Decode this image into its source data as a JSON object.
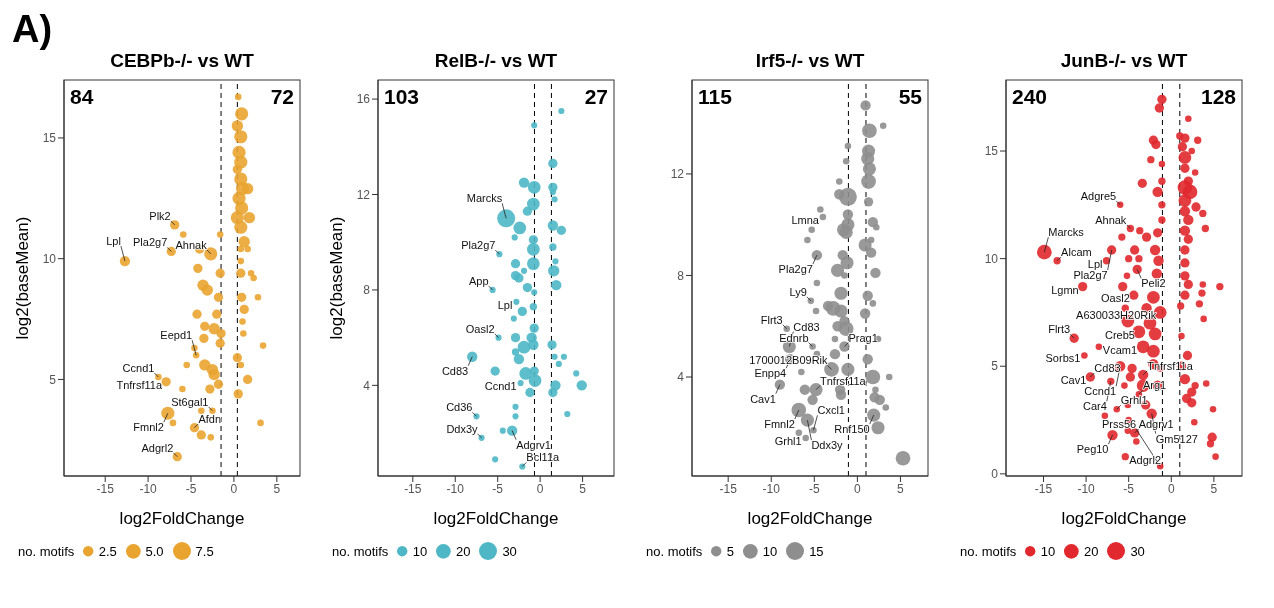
{
  "chart_data": [
    {
      "type": "bubble",
      "title": "CEBPb-/- vs WT",
      "xlabel": "log2FoldChange",
      "ylabel": "log2(baseMean)",
      "legend_title": "no. motifs",
      "size_legend": [
        2.5,
        {
          "value": 5,
          "label": "5.0"
        },
        7.5
      ],
      "xlim": [
        -19.8,
        7.7
      ],
      "xticks": [
        -15,
        -10,
        -5,
        0,
        5
      ],
      "ylim": [
        1,
        17.4
      ],
      "yticks": [
        5,
        10,
        15
      ],
      "ref_lines": [
        {
          "axis": "x",
          "value": -1.5,
          "line_style": "dashed",
          "color": "#000000"
        },
        {
          "axis": "x",
          "value": 0.4,
          "line_style": "dashed",
          "color": "#000000"
        }
      ],
      "series": [
        {
          "color": "#e9a430",
          "x": [
            0.5,
            0.9,
            0.4,
            0.8,
            0.6,
            0.8,
            0.4,
            0.8,
            1.0,
            1.6,
            0.6,
            0.9,
            0.4,
            1.8,
            0.8,
            1.2,
            0.8,
            1.6,
            0.8,
            0.8,
            2.0,
            2.3,
            2.8,
            0.9,
            1.2,
            1.0,
            1.1,
            3.4,
            0.4,
            0.8,
            1.6,
            0.5,
            3.1,
            -6.9,
            -5.9,
            -7.3,
            -12.7,
            -2.7,
            -4.0,
            -1.6,
            -4.2,
            -1.6,
            -3.6,
            -3.1,
            -1.8,
            -4.3,
            -2.0,
            -3.4,
            -2.3,
            -1.5,
            -3.5,
            -1.6,
            -4.6,
            -4.4,
            -3.4,
            -2.5,
            -2.3,
            -5.5,
            -8.8,
            -7.9,
            -6.0,
            -1.8,
            -2.8,
            -2.5,
            -3.8,
            -7.7,
            -7.1,
            -4.6,
            -3.8,
            -2.7,
            -6.6
          ],
          "values": [
            16.7,
            16.0,
            15.5,
            15.05,
            14.4,
            14.0,
            13.7,
            13.3,
            12.9,
            12.9,
            12.5,
            12.1,
            11.7,
            11.7,
            11.3,
            10.7,
            10.4,
            10.4,
            9.9,
            9.4,
            9.4,
            9.2,
            8.4,
            8.4,
            7.9,
            7.4,
            6.9,
            6.4,
            5.9,
            5.6,
            5.0,
            4.4,
            3.2,
            11.4,
            11.0,
            10.3,
            9.9,
            10.2,
            10.4,
            11.0,
            9.6,
            9.4,
            8.9,
            8.7,
            8.4,
            7.7,
            7.7,
            7.2,
            7.1,
            6.9,
            6.7,
            6.5,
            6.3,
            6.0,
            5.6,
            5.4,
            5.2,
            5.6,
            5.1,
            4.9,
            4.6,
            4.8,
            4.6,
            3.7,
            3.7,
            3.6,
            3.2,
            3.0,
            2.7,
            2.6,
            1.8
          ],
          "sizes": [
            1,
            4,
            3,
            4,
            4,
            4,
            2,
            4,
            4,
            3,
            4,
            4,
            4,
            3,
            4,
            3,
            1,
            1,
            1,
            2,
            1,
            1,
            1,
            2,
            2,
            1,
            1,
            1,
            2,
            1,
            2,
            2,
            1,
            2,
            1,
            2,
            2.5,
            4,
            2,
            1,
            2,
            2,
            3,
            3,
            2,
            2,
            2,
            2,
            3,
            2,
            2,
            2,
            1,
            1,
            3,
            3,
            3,
            1,
            1,
            2,
            1,
            2,
            2,
            1,
            1,
            4,
            1,
            2,
            2,
            1,
            2
          ]
        }
      ],
      "annotations": [
        "A)",
        "84",
        "72",
        {
          "text": "Plk2",
          "x": -6.9,
          "y": 11.4
        },
        {
          "text": "Ahnak",
          "x": -2.7,
          "y": 10.2
        },
        {
          "text": "Pla2g7",
          "x": -7.3,
          "y": 10.3
        },
        {
          "text": "Lpl",
          "x": -12.7,
          "y": 9.9
        },
        {
          "text": "Eepd1",
          "x": -4.4,
          "y": 6.0
        },
        {
          "text": "Ccnd1",
          "x": -8.8,
          "y": 5.1
        },
        {
          "text": "Tnfrsf11a",
          "x": -7.9,
          "y": 4.9
        },
        {
          "text": "St6gal1",
          "x": -2.5,
          "y": 3.7
        },
        {
          "text": "Fmnl2",
          "x": -7.7,
          "y": 3.6
        },
        {
          "text": "Afdn",
          "x": -4.6,
          "y": 3.0
        },
        {
          "text": "Adgrl2",
          "x": -6.6,
          "y": 1.8
        }
      ]
    },
    {
      "type": "bubble",
      "title": "RelB-/- vs WT",
      "xlabel": "log2FoldChange",
      "ylabel": "log2(baseMean)",
      "legend_title": "no. motifs",
      "size_legend": [
        10,
        20,
        30
      ],
      "xlim": [
        -19.1,
        8.7
      ],
      "xticks": [
        -15,
        -10,
        -5,
        0,
        5
      ],
      "ylim": [
        0.2,
        16.8
      ],
      "yticks": [
        4,
        8,
        12,
        16
      ],
      "ref_lines": [
        {
          "axis": "x",
          "value": -0.67,
          "line_style": "dashed",
          "color": "#000000"
        },
        {
          "axis": "x",
          "value": 1.33,
          "line_style": "dashed",
          "color": "#000000"
        }
      ],
      "series": [
        {
          "color": "#4eb7c5",
          "x": [
            2.5,
            -0.7,
            1.5,
            -1.9,
            -0.7,
            1.5,
            1.5,
            -0.8,
            -1.5,
            1.7,
            -4.0,
            -2.4,
            1.5,
            2.5,
            -3.0,
            -0.8,
            -0.8,
            1.5,
            -4.8,
            -2.9,
            -0.8,
            1.8,
            1.6,
            -2.9,
            -2.5,
            -5.6,
            -1.5,
            1.9,
            -1.9,
            -0.7,
            -2.8,
            -2.1,
            -0.8,
            -3.1,
            -0.7,
            -4.9,
            -2.9,
            -1.0,
            1.4,
            -1.9,
            -0.8,
            -8.0,
            -2.5,
            -2.9,
            1.7,
            2.8,
            2.2,
            -5.3,
            -1.7,
            -0.7,
            -0.6,
            -2.3,
            4.25,
            1.8,
            4.9,
            -1.2,
            1.5,
            -7.5,
            -2.9,
            -2.9,
            3.2,
            -3.3,
            -4.4,
            -6.9,
            -5.3,
            -2.1
          ],
          "values": [
            15.5,
            14.9,
            13.3,
            12.5,
            12.3,
            12.3,
            12.1,
            11.6,
            11.3,
            11.8,
            11.0,
            10.6,
            10.7,
            10.5,
            10.2,
            10.1,
            9.7,
            9.8,
            9.5,
            9.1,
            9.1,
            9.2,
            8.8,
            8.6,
            8.5,
            8.0,
            8.1,
            8.2,
            8.8,
            7.9,
            7.5,
            7.1,
            7.3,
            6.8,
            6.4,
            6.0,
            6.0,
            6.0,
            5.7,
            5.6,
            5.7,
            5.2,
            5.1,
            5.4,
            5.2,
            5.2,
            4.9,
            4.6,
            4.5,
            4.6,
            4.2,
            4.1,
            4.5,
            4.0,
            4.0,
            3.7,
            3.7,
            2.7,
            3.1,
            2.7,
            2.8,
            2.1,
            2.1,
            1.8,
            0.9,
            0.6
          ],
          "sizes": [
            3.5,
            3.5,
            8,
            10,
            15,
            8,
            3.5,
            15,
            8,
            3.5,
            30,
            15,
            10,
            8,
            3.5,
            8,
            15,
            5,
            3.5,
            8,
            15,
            3.5,
            12,
            8,
            8,
            3.5,
            8,
            10,
            3.5,
            3.5,
            3.5,
            8,
            5,
            3.5,
            8,
            3.5,
            8,
            10,
            8,
            15,
            10,
            10,
            10,
            5,
            3.5,
            3.5,
            3.5,
            8,
            15,
            8,
            15,
            3.5,
            3.5,
            10,
            10,
            8,
            8,
            3.5,
            3.5,
            3.5,
            3.5,
            10,
            3.5,
            3.5,
            3.5,
            3.5
          ]
        }
      ],
      "annotations": [
        "103",
        "27",
        {
          "text": "Marcks",
          "x": -4.0,
          "y": 11.0
        },
        {
          "text": "Pla2g7",
          "x": -4.8,
          "y": 9.5
        },
        {
          "text": "App",
          "x": -5.6,
          "y": 8.0
        },
        {
          "text": "Lpl",
          "x": -2.8,
          "y": 7.5
        },
        {
          "text": "Oasl2",
          "x": -4.9,
          "y": 6.0
        },
        {
          "text": "Cd83",
          "x": -8.0,
          "y": 5.2
        },
        {
          "text": "Ccnd1",
          "x": -2.3,
          "y": 4.1
        },
        {
          "text": "Cd36",
          "x": -7.5,
          "y": 2.7
        },
        {
          "text": "Adgrv1",
          "x": -3.3,
          "y": 2.1
        },
        {
          "text": "Ddx3y",
          "x": -6.9,
          "y": 1.8
        },
        {
          "text": "Bcl11a",
          "x": -2.1,
          "y": 0.6
        }
      ]
    },
    {
      "type": "bubble",
      "title": "Irf5-/- vs WT",
      "xlabel": "log2FoldChange",
      "legend_title": "no. motifs",
      "size_legend": [
        5,
        10,
        15
      ],
      "xlim": [
        -19.2,
        8.2
      ],
      "xticks": [
        -15,
        -10,
        -5,
        0,
        5
      ],
      "ylim": [
        0.1,
        15.7
      ],
      "yticks": [
        4,
        8,
        12
      ],
      "ref_lines": [
        {
          "axis": "x",
          "value": -1.04,
          "line_style": "dashed",
          "color": "#000000"
        },
        {
          "axis": "x",
          "value": 1.0,
          "line_style": "dashed",
          "color": "#000000"
        }
      ],
      "series": [
        {
          "color": "#8e8e8e",
          "x": [
            0.95,
            3.0,
            1.4,
            -1.1,
            1.3,
            1.2,
            -1.3,
            1.4,
            1.3,
            -2.1,
            -2.1,
            -1.1,
            1.3,
            -4.3,
            -4.0,
            -1.1,
            -1.1,
            1.8,
            2.2,
            -5.3,
            -1.6,
            -1.3,
            -5.8,
            1.6,
            -4.7,
            0.9,
            1.6,
            -1.7,
            -1.2,
            -2.3,
            2.1,
            -1.5,
            -4.7,
            -5.4,
            -1.9,
            1.2,
            1.8,
            -3.4,
            -2.8,
            -1.9,
            -4.8,
            0.9,
            -1.5,
            -2.3,
            -1.3,
            -8.2,
            -7.9,
            -2.6,
            2.4,
            -5.2,
            -1.5,
            -2.6,
            -4.7,
            -7.8,
            1.2,
            -3.0,
            -1.1,
            -6.5,
            1.8,
            3.7,
            -9.0,
            -6.1,
            -4.8,
            -2.0,
            -1.9,
            2.1,
            2.0,
            2.6,
            3.3,
            -5.2,
            -6.8,
            1.9,
            2.4,
            -5.8,
            -5.1,
            -6.8,
            -6.0,
            5.3
          ],
          "values": [
            14.7,
            13.9,
            13.7,
            13.1,
            12.9,
            12.6,
            12.5,
            12.2,
            11.7,
            11.7,
            11.2,
            11.1,
            10.9,
            10.6,
            10.3,
            10.4,
            10.0,
            10.1,
            9.9,
            9.8,
            9.8,
            9.7,
            9.4,
            9.4,
            8.8,
            9.2,
            8.9,
            8.8,
            8.5,
            8.2,
            8.1,
            8.0,
            7.7,
            7.0,
            7.3,
            7.2,
            6.9,
            6.8,
            6.7,
            6.6,
            6.6,
            6.5,
            6.2,
            6.0,
            5.9,
            5.9,
            5.2,
            5.5,
            5.5,
            5.2,
            5.2,
            4.9,
            4.9,
            4.7,
            4.7,
            4.3,
            4.3,
            4.2,
            4.0,
            4.0,
            3.7,
            3.5,
            3.5,
            3.5,
            3.3,
            3.5,
            3.2,
            3.1,
            2.8,
            3.1,
            2.7,
            2.5,
            2.0,
            2.3,
            1.9,
            1.8,
            1.6,
            0.8
          ],
          "sizes": [
            5,
            2,
            10,
            2,
            8,
            8,
            2,
            8,
            10,
            2,
            5,
            15,
            4,
            2,
            2,
            5,
            8,
            5,
            2,
            2,
            8,
            8,
            2,
            2,
            5,
            8,
            5,
            5,
            8,
            8,
            5,
            2,
            2,
            2,
            8,
            5,
            2,
            5,
            10,
            8,
            2,
            5,
            5,
            5,
            10,
            2,
            8,
            2,
            2,
            2,
            5,
            5,
            2,
            5,
            5,
            10,
            8,
            2,
            10,
            2,
            5,
            5,
            8,
            5,
            5,
            2,
            5,
            5,
            2,
            5,
            10,
            8,
            8,
            8,
            2,
            2,
            2,
            10
          ]
        }
      ],
      "annotations": [
        "115",
        "55",
        {
          "text": "Lmna",
          "x": -4.0,
          "y": 10.3
        },
        {
          "text": "Pla2g7",
          "x": -4.7,
          "y": 8.8
        },
        {
          "text": "Ly9",
          "x": -5.4,
          "y": 7.0
        },
        {
          "text": "Flrt3",
          "x": -8.2,
          "y": 5.9
        },
        {
          "text": "Cd83",
          "x": -7.9,
          "y": 5.2
        },
        {
          "text": "Ednrb",
          "x": -5.2,
          "y": 5.2
        },
        {
          "text": "Prag1",
          "x": -1.5,
          "y": 5.2
        },
        {
          "text": "Enpp4",
          "x": -7.8,
          "y": 4.7
        },
        {
          "text": "1700012B09Rik",
          "x": -3.0,
          "y": 4.3
        },
        {
          "text": "Cav1",
          "x": -9.0,
          "y": 3.7
        },
        {
          "text": "Tnfrsf11a",
          "x": -4.8,
          "y": 3.5
        },
        {
          "text": "Fmnl2",
          "x": -6.8,
          "y": 2.7
        },
        {
          "text": "Rnf150",
          "x": 1.9,
          "y": 2.5
        },
        {
          "text": "Ddx3y",
          "x": -5.8,
          "y": 2.3
        },
        {
          "text": "Cxcl1",
          "x": -5.1,
          "y": 1.9
        },
        {
          "text": "Grhl1",
          "x": -6.0,
          "y": 1.6
        }
      ]
    },
    {
      "type": "bubble",
      "title": "JunB-/- vs WT",
      "xlabel": "log2FoldChange",
      "legend_title": "no. motifs",
      "size_legend": [
        10,
        20,
        30
      ],
      "xlim": [
        -19.4,
        8.3
      ],
      "xticks": [
        -15,
        -10,
        -5,
        0,
        5
      ],
      "ylim": [
        -0.1,
        18.3
      ],
      "yticks": [
        0,
        5,
        10,
        15
      ],
      "ref_lines": [
        {
          "axis": "x",
          "value": -1.04,
          "line_style": "dashed",
          "color": "#000000"
        },
        {
          "axis": "x",
          "value": 1.0,
          "line_style": "dashed",
          "color": "#000000"
        }
      ],
      "series": [
        {
          "color": "#e0282e",
          "x": [
            -1.1,
            -1.4,
            2.0,
            -2.1,
            -1.8,
            1.0,
            1.6,
            3.1,
            1.3,
            2.4,
            1.6,
            -2.4,
            -1.1,
            1.6,
            2.8,
            2.0,
            -3.4,
            -1.1,
            1.6,
            2.2,
            -1.6,
            1.6,
            -1.1,
            -6.0,
            2.9,
            1.6,
            3.7,
            2.0,
            -1.1,
            4.0,
            -3.7,
            1.6,
            -4.8,
            -1.6,
            -5.8,
            -2.9,
            2.0,
            -7.0,
            -4.3,
            -1.9,
            1.6,
            -14.9,
            -13.4,
            -5.0,
            -3.8,
            -1.5,
            1.6,
            -7.6,
            -5.2,
            -4.0,
            -1.7,
            1.6,
            -10.4,
            -5.7,
            2.0,
            3.7,
            5.7,
            3.6,
            -4.4,
            -2.1,
            1.6,
            -5.4,
            -2.9,
            -1.3,
            3.3,
            1.1,
            3.8,
            -5.1,
            -2.5,
            -3.8,
            -1.9,
            1.2,
            -11.4,
            -8.5,
            -10.2,
            -3.3,
            -2.1,
            1.9,
            -6.0,
            -4.6,
            -2.1,
            -1.3,
            1.2,
            -9.5,
            -4.8,
            -3.3,
            1.6,
            4.1,
            -7.1,
            -5.5,
            -3.3,
            -1.6,
            2.8,
            2.4,
            -3.8,
            1.8,
            2.4,
            -3.0,
            -5.1,
            -6.4,
            4.9,
            -2.3,
            -7.8,
            -5.0,
            2.7,
            -4.3,
            -6.9,
            -5.1,
            4.8,
            4.6,
            -4.1,
            5.2,
            -5.4,
            -1.3
          ],
          "values": [
            17.4,
            17.0,
            16.5,
            15.5,
            15.3,
            15.7,
            15.6,
            15.5,
            15.2,
            15.0,
            14.7,
            14.6,
            14.4,
            14.2,
            14.0,
            13.6,
            13.5,
            13.6,
            13.3,
            13.1,
            13.1,
            12.7,
            12.5,
            12.5,
            12.4,
            12.2,
            12.1,
            11.8,
            11.8,
            11.4,
            11.3,
            11.3,
            11.4,
            11.2,
            11.0,
            11.0,
            10.9,
            10.4,
            10.4,
            10.4,
            10.4,
            10.3,
            9.9,
            10.0,
            10.0,
            9.9,
            9.8,
            9.9,
            9.2,
            9.5,
            9.3,
            9.2,
            8.7,
            8.7,
            8.8,
            8.8,
            8.7,
            8.4,
            8.3,
            8.2,
            8.3,
            7.7,
            7.7,
            7.5,
            7.9,
            7.8,
            7.2,
            7.1,
            7.0,
            6.6,
            6.5,
            6.4,
            6.3,
            5.9,
            5.5,
            5.9,
            5.7,
            5.5,
            5.0,
            4.9,
            5.1,
            4.9,
            5.0,
            4.5,
            4.5,
            4.6,
            4.4,
            4.2,
            4.3,
            4.1,
            4.1,
            4.1,
            4.1,
            3.8,
            3.7,
            3.5,
            3.3,
            3.2,
            3.2,
            3.0,
            3.0,
            2.8,
            2.7,
            2.5,
            2.4,
            1.9,
            1.8,
            2.0,
            1.7,
            1.4,
            1.5,
            0.8,
            0.8,
            0.35
          ],
          "sizes": [
            8,
            8,
            4,
            8,
            8,
            5,
            8,
            5,
            8,
            4,
            15,
            5,
            4,
            8,
            4,
            8,
            8,
            5,
            20,
            20,
            10,
            15,
            5,
            4,
            8,
            10,
            5,
            10,
            5,
            5,
            5,
            10,
            5,
            8,
            5,
            8,
            8,
            8,
            8,
            10,
            8,
            20,
            5,
            5,
            5,
            10,
            8,
            5,
            4,
            8,
            10,
            8,
            8,
            8,
            8,
            4,
            5,
            5,
            8,
            15,
            8,
            5,
            10,
            15,
            5,
            5,
            4,
            15,
            15,
            15,
            15,
            4,
            8,
            4,
            4,
            15,
            15,
            8,
            10,
            8,
            10,
            4,
            8,
            8,
            8,
            10,
            10,
            4,
            5,
            4,
            15,
            10,
            5,
            8,
            4,
            8,
            8,
            8,
            4,
            4,
            4,
            10,
            4,
            4,
            4,
            8,
            10,
            4,
            8,
            5,
            4,
            4,
            5,
            4
          ]
        }
      ],
      "annotations": [
        "240",
        "128",
        {
          "text": "Adgre5",
          "x": -6.0,
          "y": 12.5
        },
        {
          "text": "Ahnak",
          "x": -4.8,
          "y": 11.4
        },
        {
          "text": "Marcks",
          "x": -14.9,
          "y": 10.3
        },
        {
          "text": "Pla2g7",
          "x": -7.0,
          "y": 10.4
        },
        {
          "text": "Peli2",
          "x": -4.0,
          "y": 9.5
        },
        {
          "text": "Alcam",
          "x": -13.4,
          "y": 9.9
        },
        {
          "text": "Lpl",
          "x": -7.6,
          "y": 9.9
        },
        {
          "text": "Lgmn",
          "x": -10.4,
          "y": 8.7
        },
        {
          "text": "Oasl2",
          "x": -4.4,
          "y": 8.3
        },
        {
          "text": "A630033H20Rik",
          "x": -1.3,
          "y": 7.5
        },
        {
          "text": "Flrt3",
          "x": -11.4,
          "y": 6.3
        },
        {
          "text": "Vcam1",
          "x": -8.5,
          "y": 5.9
        },
        {
          "text": "Creb5",
          "x": -3.8,
          "y": 6.6
        },
        {
          "text": "Sorbs1",
          "x": -10.2,
          "y": 5.5
        },
        {
          "text": "Ccnd1",
          "x": -6.0,
          "y": 5.0
        },
        {
          "text": "Cav1",
          "x": -9.5,
          "y": 4.5
        },
        {
          "text": "Tnfrsf11a",
          "x": -3.3,
          "y": 4.6
        },
        {
          "text": "Cd83",
          "x": -9.5,
          "y": 4.5
        },
        {
          "text": "Car4",
          "x": -7.1,
          "y": 4.3
        },
        {
          "text": "Arg1",
          "x": -3.8,
          "y": 3.7
        },
        {
          "text": "Grhl1",
          "x": -6.4,
          "y": 3.0
        },
        {
          "text": "Gm5127",
          "x": -2.3,
          "y": 2.8
        },
        {
          "text": "Peg10",
          "x": -6.9,
          "y": 1.8
        },
        {
          "text": "Adgrv1",
          "x": -4.3,
          "y": 1.9
        },
        {
          "text": "Adgrl2",
          "x": -5.4,
          "y": 0.8
        },
        {
          "text": "Prss56",
          "x": -1.3,
          "y": 0.35
        }
      ]
    }
  ]
}
